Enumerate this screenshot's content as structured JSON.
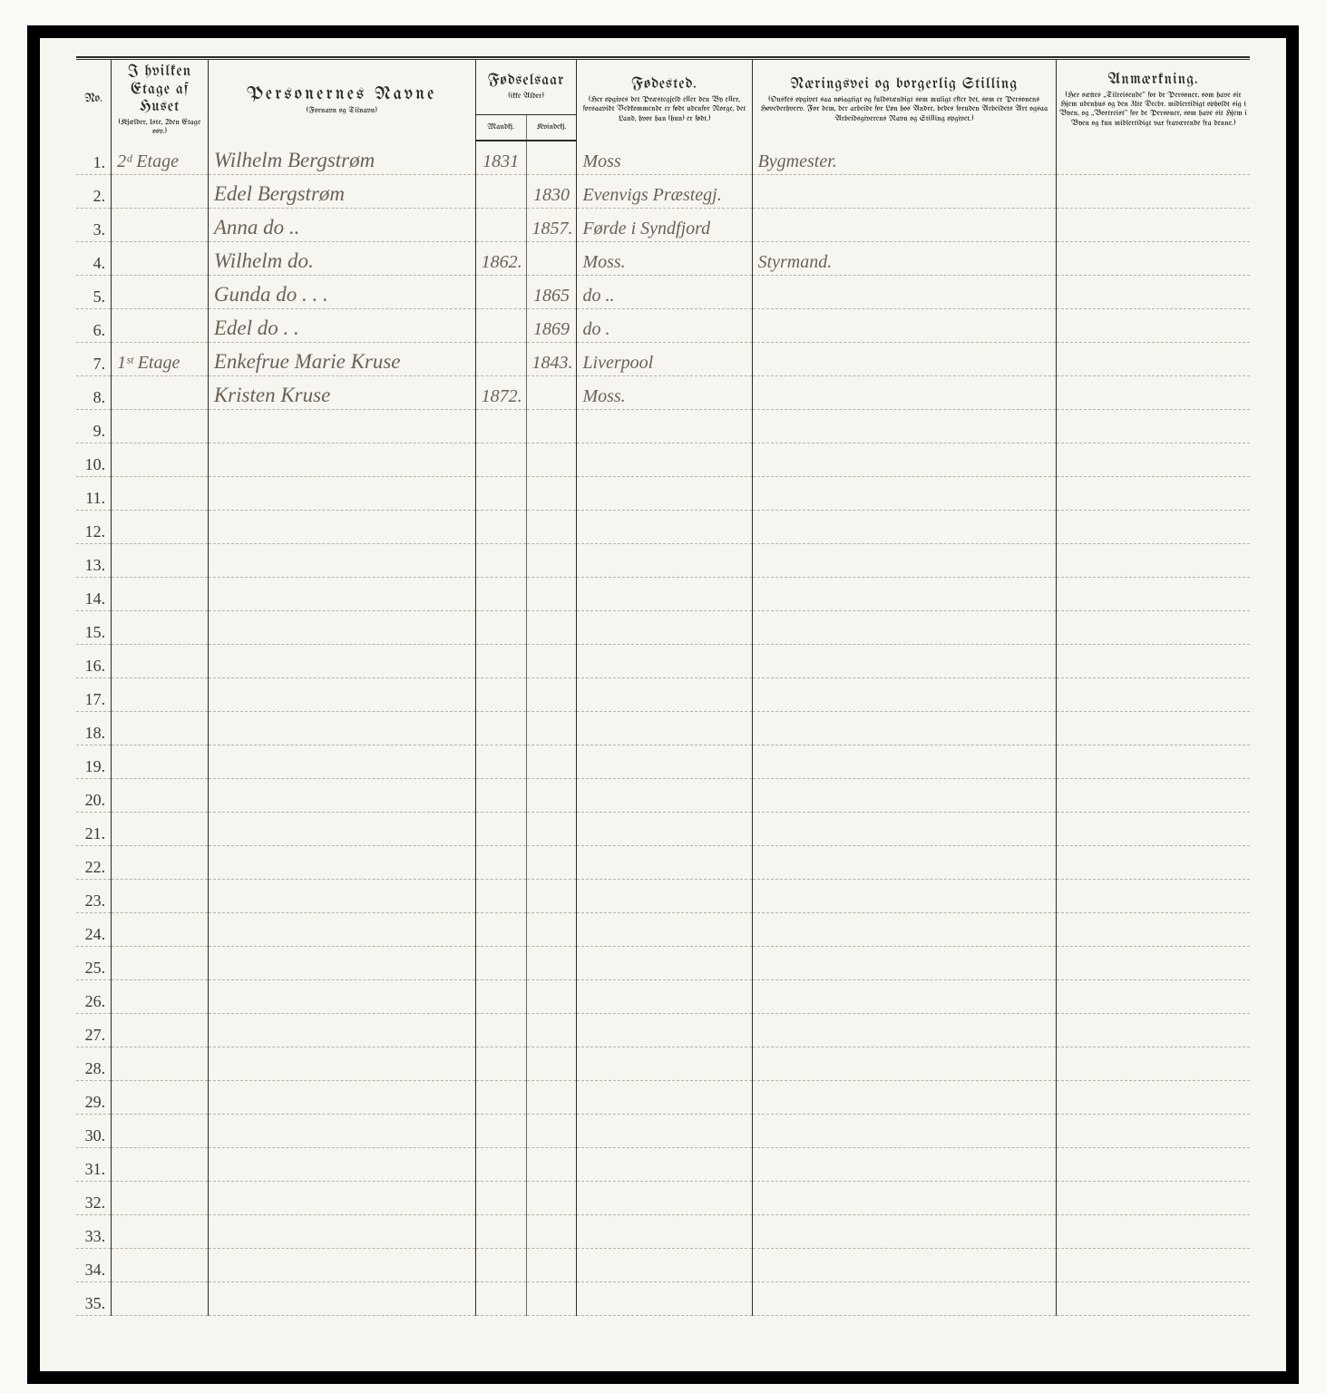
{
  "headers": {
    "no": "No.",
    "etage_title": "I hvilken Etage af Huset",
    "etage_sub": "(Kjælder, 1ste, 2den Etage osv.)",
    "name_title": "Personernes  Navne",
    "name_sub": "(Fornavn og Tilnavn)",
    "year_title": "Fødselsaar",
    "year_sub": "(ikke Alder)",
    "year_m": "Mandkj.",
    "year_f": "Kvindekj.",
    "place_title": "Fødested.",
    "place_sub": "(Her opgives det Præstegjeld eller den By eller, forsaavidt Vedkommende er født udenfor Norge, det Land, hvor han (hun) er født.)",
    "occ_title": "Næringsvei og borgerlig Stilling",
    "occ_sub": "(Onskes opgivet saa nøiagtigt og fuldstændigt som muligt efter det, som er Personens Hovederhverv. For dem, der arbeide for Løn hos Andre, bedes foruden Arbeidets Art ogsaa Arbeidsgiverens Navn og Stilling opgivet.)",
    "rem_title": "Anmærkning.",
    "rem_sub": "(Her sættes „Tilreisende\" for de Personer, som have sit Hjem udenhus og den 31te Decbr. midlertidigt opholdt sig i Byen, og „Bortreist\" for de Personer, som have sit Hjem i Byen og kun midlertidigt var fraværende fra denne.)"
  },
  "rows": [
    {
      "no": "1.",
      "etage": "2ᵈ Etage",
      "name": "Wilhelm Bergstrøm",
      "ym": "1831",
      "yf": "",
      "place": "Moss",
      "occ": "Bygmester.",
      "rem": ""
    },
    {
      "no": "2.",
      "etage": "",
      "name": "Edel Bergstrøm",
      "ym": "",
      "yf": "1830",
      "place": "Evenvigs Præstegj.",
      "occ": "",
      "rem": ""
    },
    {
      "no": "3.",
      "etage": "",
      "name": "Anna   do  ..",
      "ym": "",
      "yf": "1857.",
      "place": "Førde i Syndfjord",
      "occ": "",
      "rem": ""
    },
    {
      "no": "4.",
      "etage": "",
      "name": "Wilhelm   do.",
      "ym": "1862.",
      "yf": "",
      "place": "Moss.",
      "occ": "Styrmand.",
      "rem": ""
    },
    {
      "no": "5.",
      "etage": "",
      "name": "Gunda   do . . .",
      "ym": "",
      "yf": "1865",
      "place": "do ..",
      "occ": "",
      "rem": ""
    },
    {
      "no": "6.",
      "etage": "",
      "name": "Edel   do . .",
      "ym": "",
      "yf": "1869",
      "place": "do .",
      "occ": "",
      "rem": ""
    },
    {
      "no": "7.",
      "etage": "1ˢᵗ Etage",
      "name": "Enkefrue Marie Kruse",
      "ym": "",
      "yf": "1843.",
      "place": "Liverpool",
      "occ": "",
      "rem": ""
    },
    {
      "no": "8.",
      "etage": "",
      "name": "Kristen Kruse",
      "ym": "1872.",
      "yf": "",
      "place": "Moss.",
      "occ": "",
      "rem": ""
    },
    {
      "no": "9.",
      "etage": "",
      "name": "",
      "ym": "",
      "yf": "",
      "place": "",
      "occ": "",
      "rem": ""
    },
    {
      "no": "10.",
      "etage": "",
      "name": "",
      "ym": "",
      "yf": "",
      "place": "",
      "occ": "",
      "rem": ""
    },
    {
      "no": "11.",
      "etage": "",
      "name": "",
      "ym": "",
      "yf": "",
      "place": "",
      "occ": "",
      "rem": ""
    },
    {
      "no": "12.",
      "etage": "",
      "name": "",
      "ym": "",
      "yf": "",
      "place": "",
      "occ": "",
      "rem": ""
    },
    {
      "no": "13.",
      "etage": "",
      "name": "",
      "ym": "",
      "yf": "",
      "place": "",
      "occ": "",
      "rem": ""
    },
    {
      "no": "14.",
      "etage": "",
      "name": "",
      "ym": "",
      "yf": "",
      "place": "",
      "occ": "",
      "rem": ""
    },
    {
      "no": "15.",
      "etage": "",
      "name": "",
      "ym": "",
      "yf": "",
      "place": "",
      "occ": "",
      "rem": ""
    },
    {
      "no": "16.",
      "etage": "",
      "name": "",
      "ym": "",
      "yf": "",
      "place": "",
      "occ": "",
      "rem": ""
    },
    {
      "no": "17.",
      "etage": "",
      "name": "",
      "ym": "",
      "yf": "",
      "place": "",
      "occ": "",
      "rem": ""
    },
    {
      "no": "18.",
      "etage": "",
      "name": "",
      "ym": "",
      "yf": "",
      "place": "",
      "occ": "",
      "rem": ""
    },
    {
      "no": "19.",
      "etage": "",
      "name": "",
      "ym": "",
      "yf": "",
      "place": "",
      "occ": "",
      "rem": ""
    },
    {
      "no": "20.",
      "etage": "",
      "name": "",
      "ym": "",
      "yf": "",
      "place": "",
      "occ": "",
      "rem": ""
    },
    {
      "no": "21.",
      "etage": "",
      "name": "",
      "ym": "",
      "yf": "",
      "place": "",
      "occ": "",
      "rem": ""
    },
    {
      "no": "22.",
      "etage": "",
      "name": "",
      "ym": "",
      "yf": "",
      "place": "",
      "occ": "",
      "rem": ""
    },
    {
      "no": "23.",
      "etage": "",
      "name": "",
      "ym": "",
      "yf": "",
      "place": "",
      "occ": "",
      "rem": ""
    },
    {
      "no": "24.",
      "etage": "",
      "name": "",
      "ym": "",
      "yf": "",
      "place": "",
      "occ": "",
      "rem": ""
    },
    {
      "no": "25.",
      "etage": "",
      "name": "",
      "ym": "",
      "yf": "",
      "place": "",
      "occ": "",
      "rem": ""
    },
    {
      "no": "26.",
      "etage": "",
      "name": "",
      "ym": "",
      "yf": "",
      "place": "",
      "occ": "",
      "rem": ""
    },
    {
      "no": "27.",
      "etage": "",
      "name": "",
      "ym": "",
      "yf": "",
      "place": "",
      "occ": "",
      "rem": ""
    },
    {
      "no": "28.",
      "etage": "",
      "name": "",
      "ym": "",
      "yf": "",
      "place": "",
      "occ": "",
      "rem": ""
    },
    {
      "no": "29.",
      "etage": "",
      "name": "",
      "ym": "",
      "yf": "",
      "place": "",
      "occ": "",
      "rem": ""
    },
    {
      "no": "30.",
      "etage": "",
      "name": "",
      "ym": "",
      "yf": "",
      "place": "",
      "occ": "",
      "rem": ""
    },
    {
      "no": "31.",
      "etage": "",
      "name": "",
      "ym": "",
      "yf": "",
      "place": "",
      "occ": "",
      "rem": ""
    },
    {
      "no": "32.",
      "etage": "",
      "name": "",
      "ym": "",
      "yf": "",
      "place": "",
      "occ": "",
      "rem": ""
    },
    {
      "no": "33.",
      "etage": "",
      "name": "",
      "ym": "",
      "yf": "",
      "place": "",
      "occ": "",
      "rem": ""
    },
    {
      "no": "34.",
      "etage": "",
      "name": "",
      "ym": "",
      "yf": "",
      "place": "",
      "occ": "",
      "rem": ""
    },
    {
      "no": "35.",
      "etage": "",
      "name": "",
      "ym": "",
      "yf": "",
      "place": "",
      "occ": "",
      "rem": ""
    }
  ],
  "colwidths": {
    "no": 38,
    "etage": 105,
    "name": 290,
    "ym": 55,
    "yf": 55,
    "place": 190,
    "occ": 330,
    "rem": 210
  }
}
